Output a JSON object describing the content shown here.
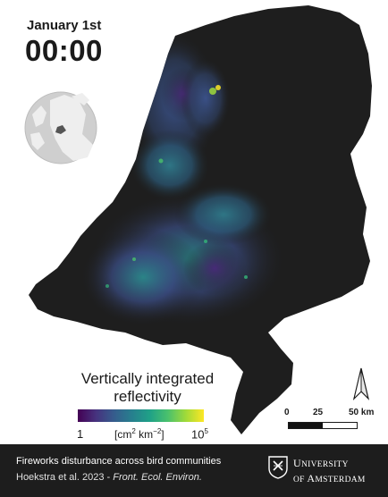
{
  "header": {
    "date": "January 1st",
    "time": "00:00"
  },
  "legend": {
    "title_line1": "Vertically integrated",
    "title_line2": "reflectivity",
    "min_label": "1",
    "unit_prefix": "[cm",
    "unit_exp1": "2",
    "unit_mid": " km",
    "unit_exp2": "−2",
    "unit_suffix": "]",
    "max_base": "10",
    "max_exp": "5",
    "colormap": [
      "#440154",
      "#46327e",
      "#365c8d",
      "#277f8e",
      "#1fa187",
      "#4ac16d",
      "#a0da39",
      "#fde725"
    ]
  },
  "scale_bar": {
    "label_0": "0",
    "label_25": "25",
    "label_50": "50 km"
  },
  "north_arrow": {
    "icon": "north-arrow-icon"
  },
  "inset_map": {
    "icon": "europe-locator-globe"
  },
  "footer": {
    "title": "Fireworks disturbance across bird communities",
    "cite_authors": "Hoekstra et al. 2023 - ",
    "cite_journal": "Front. Ecol. Environ.",
    "uni_line1_U": "U",
    "uni_line1_rest": "NIVERSITY",
    "uni_line2_pre": "OF ",
    "uni_line2_A": "A",
    "uni_line2_rest": "MSTERDAM"
  },
  "colors": {
    "land": "#1e1e1e",
    "footer_bg": "#1d1d1d",
    "globe_sea": "#cfcfcf",
    "globe_land": "#eeeeee"
  }
}
